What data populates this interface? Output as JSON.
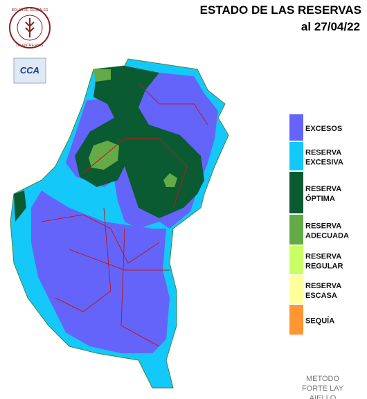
{
  "header": {
    "title": "ESTADO DE LAS RESERVAS",
    "date": "al 27/04/22"
  },
  "logo": {
    "top": "BOLSA DE CEREALES",
    "bottom": "DE ENTRE RIOS",
    "badge": "CCA"
  },
  "legend": [
    {
      "lines": [
        "EXCESOS"
      ],
      "color": "#6464fa"
    },
    {
      "lines": [
        "RESERVA",
        "EXCESIVA"
      ],
      "color": "#14c8fa"
    },
    {
      "lines": [
        "RESERVA",
        "ÓPTIMA"
      ],
      "color": "#0a5a32"
    },
    {
      "lines": [
        "RESERVA",
        "ADECUADA"
      ],
      "color": "#64aa46"
    },
    {
      "lines": [
        "RESERVA",
        "REGULAR"
      ],
      "color": "#c8ff64"
    },
    {
      "lines": [
        "RESERVA",
        "ESCASA"
      ],
      "color": "#ffff9b"
    },
    {
      "lines": [
        "SEQUÍA"
      ],
      "color": "#ff9632"
    }
  ],
  "method": [
    "METODO",
    "FORTE LAY",
    "AIELLO"
  ]
}
